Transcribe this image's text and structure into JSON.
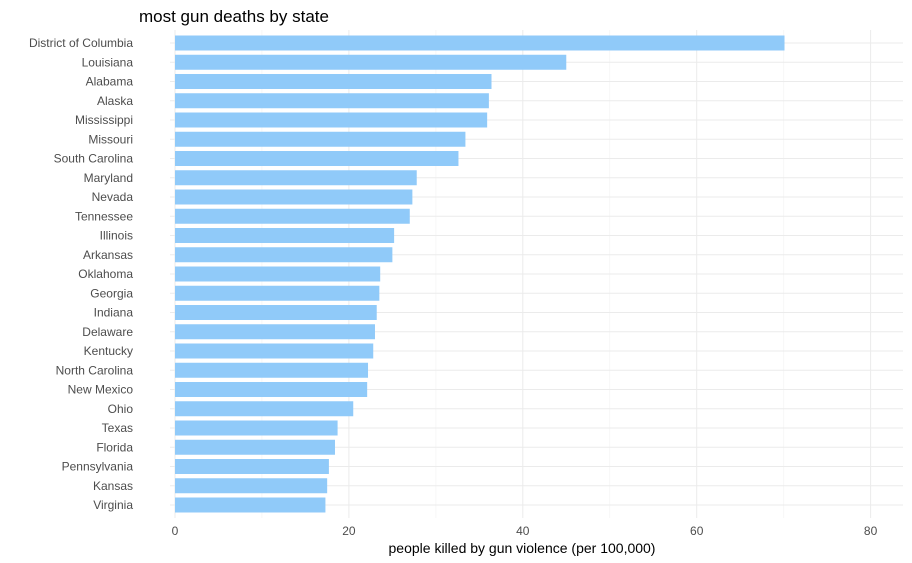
{
  "chart_data": {
    "type": "bar",
    "orientation": "horizontal",
    "title": "most gun deaths by state",
    "xlabel": "people killed by gun violence (per 100,000)",
    "ylabel": "",
    "xlim": [
      0,
      84
    ],
    "x_ticks": [
      0,
      20,
      40,
      60,
      80
    ],
    "grid": true,
    "bar_color": "#90caf9",
    "categories": [
      "District of Columbia",
      "Louisiana",
      "Alabama",
      "Alaska",
      "Mississippi",
      "Missouri",
      "South Carolina",
      "Maryland",
      "Nevada",
      "Tennessee",
      "Illinois",
      "Arkansas",
      "Oklahoma",
      "Georgia",
      "Indiana",
      "Delaware",
      "Kentucky",
      "North Carolina",
      "New Mexico",
      "Ohio",
      "Texas",
      "Florida",
      "Pennsylvania",
      "Kansas",
      "Virginia"
    ],
    "values": [
      70.1,
      45.0,
      36.4,
      36.1,
      35.9,
      33.4,
      32.6,
      27.8,
      27.3,
      27.0,
      25.2,
      25.0,
      23.6,
      23.5,
      23.2,
      23.0,
      22.8,
      22.2,
      22.1,
      20.5,
      18.7,
      18.4,
      17.7,
      17.5,
      17.3
    ]
  }
}
